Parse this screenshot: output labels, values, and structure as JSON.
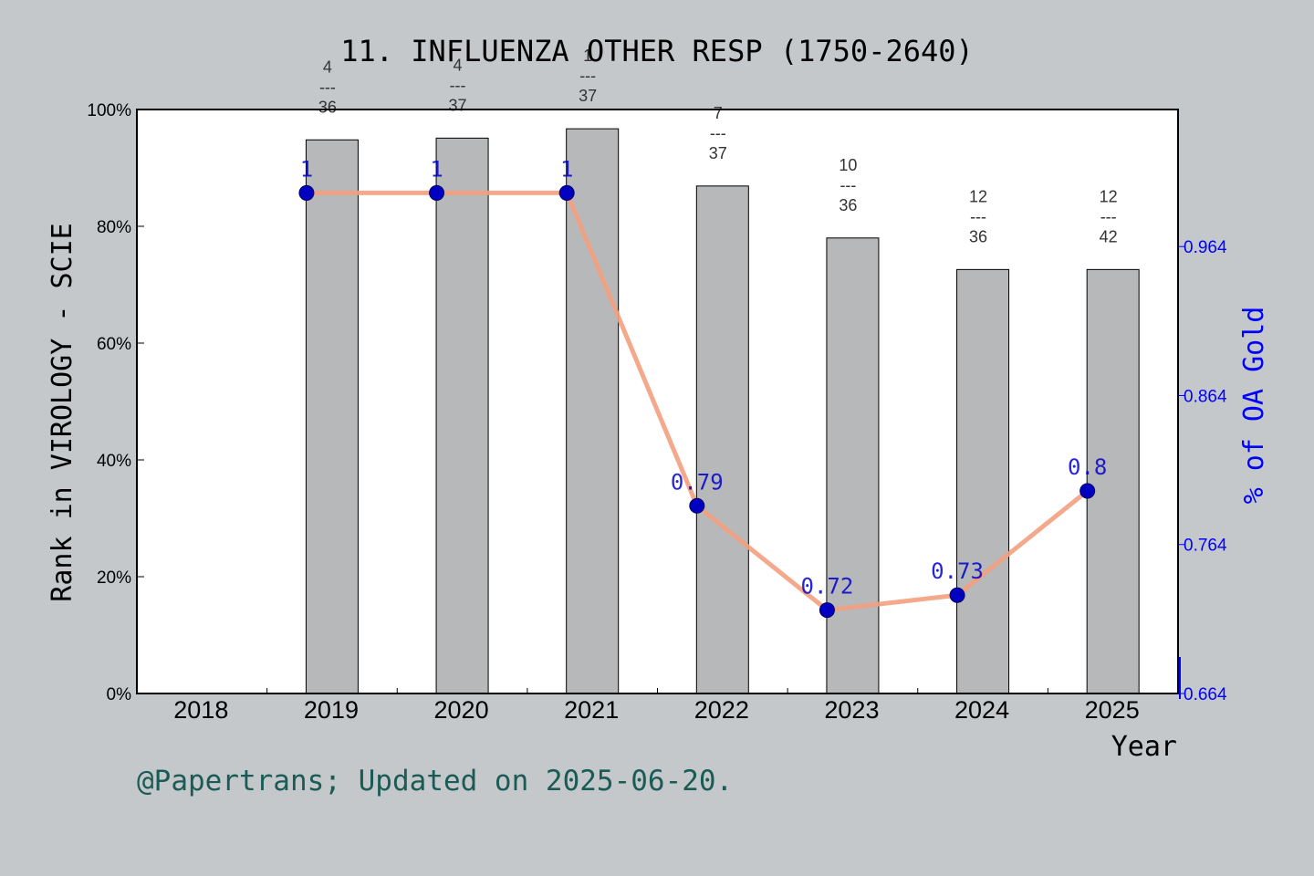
{
  "chart_data": {
    "type": "bar",
    "title": "11. INFLUENZA OTHER RESP (1750-2640)",
    "xlabel": "Year",
    "ylabel": "Rank in VIROLOGY - SCIE",
    "ylabel_right": "% of OA Gold",
    "categories": [
      "2018",
      "2019",
      "2020",
      "2021",
      "2022",
      "2023",
      "2024",
      "2025"
    ],
    "ylim": [
      0,
      100
    ],
    "yticks": [
      "0%",
      "20%",
      "40%",
      "60%",
      "80%",
      "100%"
    ],
    "y2lim": [
      0.664,
      1.056
    ],
    "y2ticks": [
      "0.664",
      "0.764",
      "0.864",
      "0.964"
    ],
    "series": [
      {
        "kind": "bar",
        "values": [
          null,
          94.8,
          95.1,
          96.7,
          86.9,
          78.0,
          72.6,
          72.6
        ],
        "labels": [
          null,
          "4\n---\n36",
          "4\n---\n37",
          "1\n---\n37",
          "7\n---\n37",
          "10\n---\n36",
          "12\n---\n36",
          "12\n---\n42"
        ],
        "color": "#b7b8ba"
      },
      {
        "kind": "line",
        "axis": "right",
        "values": [
          null,
          1,
          1,
          1,
          0.79,
          0.72,
          0.73,
          0.8
        ],
        "labels": [
          null,
          "1",
          "1",
          "1",
          "0.79",
          "0.72",
          "0.73",
          "0.8"
        ],
        "color": "#f4a080",
        "marker_color": "#0000c0"
      }
    ],
    "grid": false,
    "footer": "@Papertrans; Updated on 2025-06-20."
  },
  "colors": {
    "background": "#c4c8cb",
    "plot_background": "#ffffff",
    "bar": "#b7b8ba",
    "line": "#f4a080",
    "marker": "#0000c0",
    "right_axis": "#0000ff",
    "footer": "#1a5c55"
  }
}
